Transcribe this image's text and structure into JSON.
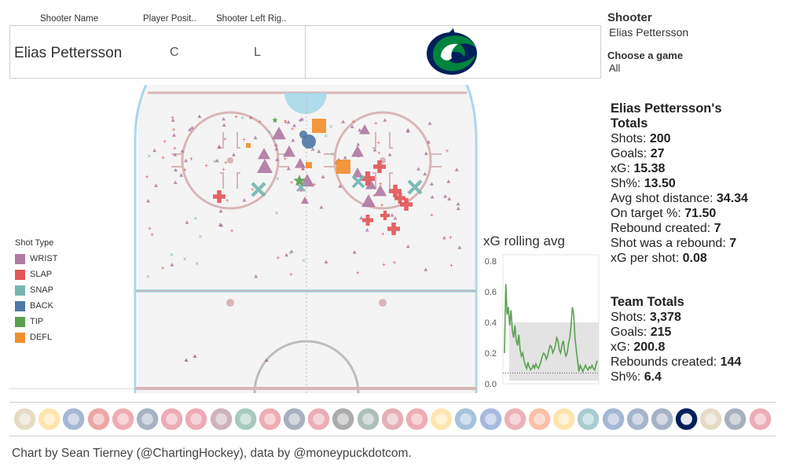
{
  "header": {
    "col_name": "Shooter Name",
    "col_position": "Player Posit..",
    "col_hand": "Shooter Left Rig..",
    "player_name": "Elias Pettersson",
    "position": "C",
    "hand": "L"
  },
  "filters": {
    "shooter_label": "Shooter",
    "shooter_value": "Elias Pettersson",
    "game_label": "Choose a game",
    "game_value": "All"
  },
  "legend": {
    "title": "Shot Type",
    "items": [
      {
        "label": "WRIST",
        "color": "#b07aa1"
      },
      {
        "label": "SLAP",
        "color": "#e15759"
      },
      {
        "label": "SNAP",
        "color": "#76b7b2"
      },
      {
        "label": "BACK",
        "color": "#4e79a7"
      },
      {
        "label": "TIP",
        "color": "#59a14f"
      },
      {
        "label": "DEFL",
        "color": "#f28e2b"
      }
    ]
  },
  "player_totals": {
    "title_line1": "Elias Pettersson's",
    "title_line2": "Totals",
    "rows": [
      {
        "label": "Shots:",
        "value": "200"
      },
      {
        "label": "Goals:",
        "value": "27"
      },
      {
        "label": "xG:",
        "value": "15.38"
      },
      {
        "label": "Sh%:",
        "value": "13.50"
      },
      {
        "label": "Avg shot distance:",
        "value": "34.34"
      },
      {
        "label": "On target %:",
        "value": "71.50"
      },
      {
        "label": "Rebound created:",
        "value": "7"
      },
      {
        "label": "Shot was a rebound:",
        "value": "7"
      },
      {
        "label": "xG per shot:",
        "value": "0.08"
      }
    ]
  },
  "team_totals": {
    "title": "Team Totals",
    "rows": [
      {
        "label": "Shots:",
        "value": "3,378"
      },
      {
        "label": "Goals:",
        "value": "215"
      },
      {
        "label": "xG:",
        "value": "200.8"
      },
      {
        "label": "Rebounds created:",
        "value": "144"
      },
      {
        "label": "Sh%:",
        "value": "6.4"
      }
    ]
  },
  "credit": "Chart by Sean Tierney (@ChartingHockey), data by @moneypuckdotcom.",
  "chart_data": {
    "type": "line",
    "title": "xG rolling avg",
    "ylim": [
      0,
      0.8
    ],
    "yticks": [
      "0.0",
      "0.2",
      "0.4",
      "0.6",
      "0.8"
    ],
    "reference_band": [
      0.02,
      0.4
    ],
    "reference_line": 0.07,
    "series": [
      {
        "color": "#59a14f",
        "values": [
          0.2,
          0.65,
          0.45,
          0.5,
          0.38,
          0.48,
          0.35,
          0.3,
          0.38,
          0.28,
          0.25,
          0.32,
          0.22,
          0.18,
          0.2,
          0.15,
          0.12,
          0.1,
          0.14,
          0.11,
          0.09,
          0.1,
          0.12,
          0.1,
          0.13,
          0.11,
          0.1,
          0.12,
          0.15,
          0.18,
          0.2,
          0.19,
          0.16,
          0.18,
          0.22,
          0.25,
          0.24,
          0.2,
          0.22,
          0.25,
          0.3,
          0.28,
          0.22,
          0.2,
          0.25,
          0.28,
          0.22,
          0.18,
          0.2,
          0.26,
          0.3,
          0.38,
          0.5,
          0.45,
          0.3,
          0.22,
          0.15,
          0.08,
          0.12,
          0.1,
          0.08,
          0.1,
          0.12,
          0.1,
          0.09,
          0.11,
          0.1,
          0.12,
          0.1,
          0.09,
          0.12,
          0.15
        ]
      }
    ]
  },
  "shot_map": [
    {
      "t": "WRIST",
      "x": 355,
      "y": 170,
      "s": 9
    },
    {
      "t": "WRIST",
      "x": 336,
      "y": 196,
      "s": 8
    },
    {
      "t": "WRIST",
      "x": 337,
      "y": 212,
      "s": 10
    },
    {
      "t": "WRIST",
      "x": 368,
      "y": 193,
      "s": 8
    },
    {
      "t": "WRIST",
      "x": 391,
      "y": 230,
      "s": 9
    },
    {
      "t": "WRIST",
      "x": 382,
      "y": 208,
      "s": 7
    },
    {
      "t": "WRIST",
      "x": 455,
      "y": 193,
      "s": 8
    },
    {
      "t": "WRIST",
      "x": 464,
      "y": 165,
      "s": 7
    },
    {
      "t": "WRIST",
      "x": 472,
      "y": 235,
      "s": 7
    },
    {
      "t": "WRIST",
      "x": 484,
      "y": 243,
      "s": 8
    },
    {
      "t": "WRIST",
      "x": 469,
      "y": 256,
      "s": 9
    },
    {
      "t": "WRIST",
      "x": 455,
      "y": 220,
      "s": 7
    },
    {
      "t": "WRIST",
      "x": 388,
      "y": 255,
      "s": 5
    },
    {
      "t": "SLAP",
      "x": 279,
      "y": 250,
      "s": 8
    },
    {
      "t": "SLAP",
      "x": 468,
      "y": 227,
      "s": 9
    },
    {
      "t": "SLAP",
      "x": 483,
      "y": 212,
      "s": 8
    },
    {
      "t": "SLAP",
      "x": 503,
      "y": 243,
      "s": 8
    },
    {
      "t": "SLAP",
      "x": 517,
      "y": 260,
      "s": 8
    },
    {
      "t": "SLAP",
      "x": 509,
      "y": 252,
      "s": 7
    },
    {
      "t": "SLAP",
      "x": 501,
      "y": 291,
      "s": 8
    },
    {
      "t": "SLAP",
      "x": 468,
      "y": 280,
      "s": 7
    },
    {
      "t": "SLAP",
      "x": 490,
      "y": 274,
      "s": 6
    },
    {
      "t": "SNAP",
      "x": 329,
      "y": 241,
      "s": 8
    },
    {
      "t": "SNAP",
      "x": 528,
      "y": 238,
      "s": 8
    },
    {
      "t": "SNAP",
      "x": 456,
      "y": 231,
      "s": 7
    },
    {
      "t": "SNAP",
      "x": 383,
      "y": 238,
      "s": 5
    },
    {
      "t": "BACK",
      "x": 393,
      "y": 180,
      "s": 9
    },
    {
      "t": "BACK",
      "x": 386,
      "y": 171,
      "s": 5
    },
    {
      "t": "TIP",
      "x": 381,
      "y": 230,
      "s": 8
    },
    {
      "t": "TIP",
      "x": 350,
      "y": 153,
      "s": 4
    },
    {
      "t": "DEFL",
      "x": 406,
      "y": 160,
      "s": 9
    },
    {
      "t": "DEFL",
      "x": 437,
      "y": 212,
      "s": 9
    },
    {
      "t": "DEFL",
      "x": 393,
      "y": 210,
      "s": 4
    },
    {
      "t": "DEFL",
      "x": 316,
      "y": 185,
      "s": 3
    }
  ],
  "team_logos": [
    "ANA",
    "ARI",
    "BOS",
    "BUF",
    "CAR",
    "CBJ",
    "CGY",
    "CHI",
    "COL",
    "DAL",
    "DET",
    "EDM",
    "FLA",
    "LAK",
    "MIN",
    "MTL",
    "NJD",
    "NSH",
    "NYI",
    "NYR",
    "OTT",
    "PHI",
    "PIT",
    "SJS",
    "STL",
    "TBL",
    "TOR",
    "VAN",
    "VGK",
    "WPG",
    "WSH"
  ]
}
